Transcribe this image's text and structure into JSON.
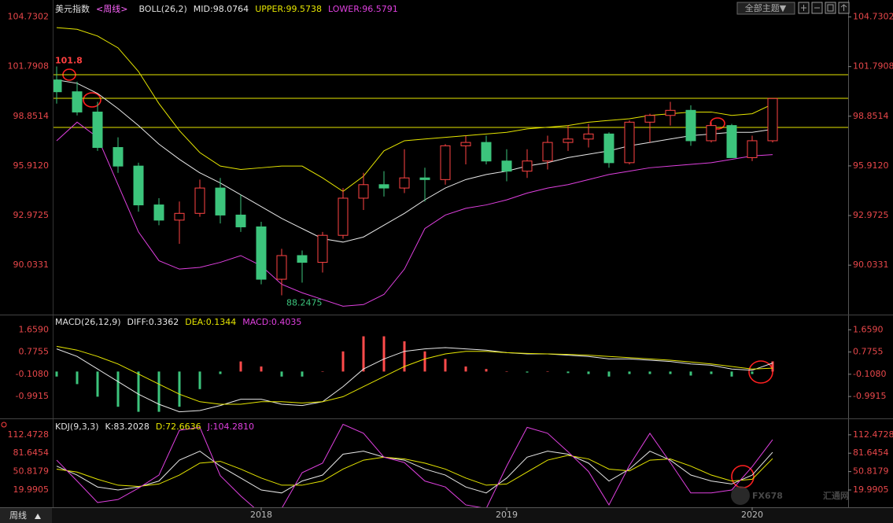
{
  "chart_data": [
    {
      "type": "candlestick",
      "title": "美元指数",
      "period": "<周线>",
      "indicator": "BOLL(26,2)",
      "categories": [
        null,
        null,
        null,
        null,
        null,
        null,
        null,
        null,
        null,
        null,
        "2018",
        null,
        null,
        null,
        null,
        null,
        null,
        null,
        null,
        null,
        null,
        null,
        "2019",
        null,
        null,
        null,
        null,
        null,
        null,
        null,
        null,
        null,
        null,
        null,
        "2020",
        null
      ],
      "open": [
        101.0,
        100.3,
        99.1,
        97.0,
        95.9,
        93.6,
        92.7,
        93.1,
        94.6,
        93.0,
        92.3,
        89.2,
        90.6,
        90.2,
        91.8,
        94.0,
        94.8,
        94.6,
        95.2,
        95.1,
        97.1,
        97.3,
        96.2,
        95.6,
        96.2,
        97.3,
        97.5,
        97.8,
        96.1,
        98.5,
        98.9,
        99.2,
        97.4,
        98.3,
        96.4,
        97.4
      ],
      "high": [
        101.8,
        100.9,
        99.7,
        97.6,
        96.1,
        94.0,
        93.8,
        95.1,
        95.2,
        94.2,
        92.6,
        91.0,
        90.9,
        92.0,
        94.6,
        95.5,
        95.6,
        96.9,
        95.8,
        97.2,
        97.7,
        97.7,
        96.9,
        96.9,
        97.7,
        98.3,
        98.4,
        97.9,
        98.6,
        99.0,
        99.7,
        99.5,
        98.5,
        98.4,
        97.7,
        99.9116
      ],
      "low": [
        99.6,
        98.9,
        96.8,
        95.5,
        93.2,
        92.4,
        91.3,
        92.9,
        92.5,
        92.0,
        88.9,
        88.2475,
        89.0,
        89.6,
        91.6,
        93.3,
        94.1,
        94.3,
        93.8,
        94.8,
        96.0,
        96.0,
        95.0,
        95.2,
        95.7,
        96.8,
        97.0,
        95.8,
        96.0,
        97.3,
        98.3,
        97.1,
        97.3,
        96.4,
        96.2,
        97.3
      ],
      "close": [
        100.3,
        99.1,
        97.0,
        95.9,
        93.6,
        92.7,
        93.1,
        94.6,
        93.0,
        92.3,
        89.2,
        90.6,
        90.2,
        91.8,
        94.0,
        94.8,
        94.6,
        95.2,
        95.1,
        97.1,
        97.3,
        96.2,
        95.6,
        96.2,
        97.3,
        97.5,
        97.8,
        96.1,
        98.5,
        98.9,
        99.2,
        97.4,
        98.3,
        96.4,
        97.4,
        99.9
      ],
      "up_color": "#ff4444",
      "down_color": "#3cc47c",
      "series": [
        {
          "name": "MID:98.0764",
          "color": "#e8e8e8",
          "values": [
            101.0,
            100.8,
            100.2,
            99.3,
            98.3,
            97.2,
            96.3,
            95.5,
            94.9,
            94.2,
            93.5,
            92.8,
            92.2,
            91.6,
            91.4,
            91.7,
            92.4,
            93.1,
            93.9,
            94.6,
            95.1,
            95.4,
            95.6,
            95.9,
            96.1,
            96.4,
            96.6,
            96.8,
            97.1,
            97.3,
            97.5,
            97.7,
            97.8,
            97.9,
            97.9,
            98.0764
          ]
        },
        {
          "name": "UPPER:99.5738",
          "color": "#e6e600",
          "values": [
            104.1,
            104.0,
            103.6,
            102.9,
            101.5,
            99.6,
            98.0,
            96.7,
            95.9,
            95.7,
            95.8,
            95.9,
            95.9,
            95.2,
            94.4,
            95.3,
            96.8,
            97.4,
            97.5,
            97.6,
            97.7,
            97.8,
            97.9,
            98.1,
            98.2,
            98.3,
            98.5,
            98.6,
            98.7,
            98.9,
            99.0,
            99.1,
            99.1,
            98.9,
            99.0,
            99.5738
          ]
        },
        {
          "name": "LOWER:96.5791",
          "color": "#e040e0",
          "values": [
            97.4,
            98.5,
            97.6,
            94.8,
            92.0,
            90.3,
            89.8,
            89.9,
            90.2,
            90.6,
            90.0,
            88.9,
            88.4,
            88.0,
            87.6,
            87.7,
            88.3,
            89.8,
            92.2,
            93.0,
            93.4,
            93.6,
            93.9,
            94.3,
            94.6,
            94.8,
            95.1,
            95.4,
            95.6,
            95.8,
            95.9,
            96.0,
            96.1,
            96.3,
            96.5,
            96.5791
          ]
        }
      ],
      "levels": [
        101.31,
        99.9116,
        98.19
      ],
      "level_color": "#e6e600",
      "ylim": [
        87.2,
        105.5
      ],
      "yticks": [
        104.7302,
        101.7908,
        98.8514,
        {
          "value": 95.912,
          "label": "95.9120"
        },
        92.9725,
        90.0331
      ]
    },
    {
      "type": "macd",
      "indicator": "MACD(26,12,9)",
      "series": [
        {
          "name": "DIFF:0.3362",
          "color": "#e8e8e8",
          "values": [
            0.9,
            0.6,
            0.1,
            -0.4,
            -0.9,
            -1.3,
            -1.6,
            -1.55,
            -1.35,
            -1.1,
            -1.1,
            -1.3,
            -1.35,
            -1.2,
            -0.6,
            0.1,
            0.5,
            0.8,
            0.9,
            0.95,
            0.9,
            0.85,
            0.75,
            0.7,
            0.7,
            0.65,
            0.6,
            0.5,
            0.5,
            0.45,
            0.4,
            0.3,
            0.25,
            0.1,
            0.05,
            0.3362
          ]
        },
        {
          "name": "DEA:0.1344",
          "color": "#e6e600",
          "values": [
            1.0,
            0.85,
            0.6,
            0.3,
            -0.1,
            -0.5,
            -0.9,
            -1.2,
            -1.3,
            -1.3,
            -1.2,
            -1.2,
            -1.25,
            -1.2,
            -1.0,
            -0.6,
            -0.2,
            0.2,
            0.5,
            0.7,
            0.8,
            0.8,
            0.75,
            0.72,
            0.7,
            0.68,
            0.65,
            0.6,
            0.55,
            0.5,
            0.45,
            0.38,
            0.3,
            0.2,
            0.1,
            0.1344
          ]
        }
      ],
      "histogram": {
        "name": "MACD:0.4035",
        "color": "#e040e0",
        "up_color": "#ff4b4b",
        "down_color": "#3cc47c",
        "values": [
          -0.2,
          -0.5,
          -1.0,
          -1.4,
          -1.6,
          -1.6,
          -1.4,
          -0.7,
          -0.1,
          0.4,
          0.2,
          -0.2,
          -0.2,
          0,
          0.8,
          1.4,
          1.4,
          1.2,
          0.8,
          0.5,
          0.2,
          0.1,
          0,
          -0.04,
          0,
          -0.06,
          -0.1,
          -0.2,
          -0.1,
          -0.1,
          -0.1,
          -0.16,
          -0.1,
          -0.2,
          -0.1,
          0.4035
        ]
      },
      "ylim": [
        -1.8,
        2.2
      ],
      "yticks": [
        {
          "value": 1.659,
          "label": "1.6590"
        },
        0.7755,
        {
          "value": -0.108,
          "label": "-0.1080"
        },
        -0.9915
      ]
    },
    {
      "type": "line",
      "indicator": "KDJ(9,3,3)",
      "series": [
        {
          "name": "K:83.2028",
          "color": "#e8e8e8",
          "values": [
            60,
            45,
            25,
            20,
            25,
            35,
            70,
            85,
            60,
            40,
            20,
            15,
            35,
            45,
            80,
            85,
            75,
            70,
            55,
            45,
            25,
            15,
            40,
            75,
            85,
            80,
            65,
            35,
            55,
            85,
            70,
            45,
            35,
            30,
            45,
            83.2028
          ]
        },
        {
          "name": "D:72.6636",
          "color": "#e6e600",
          "values": [
            55,
            50,
            38,
            28,
            26,
            30,
            45,
            65,
            68,
            55,
            40,
            28,
            28,
            35,
            55,
            70,
            75,
            72,
            65,
            55,
            40,
            28,
            30,
            50,
            70,
            78,
            72,
            55,
            52,
            70,
            72,
            60,
            45,
            35,
            38,
            72.6636
          ]
        },
        {
          "name": "J:104.2810",
          "color": "#e040e0",
          "values": [
            70,
            35,
            -1,
            4,
            23,
            45,
            120,
            125,
            44,
            10,
            -20,
            -11,
            49,
            65,
            130,
            115,
            75,
            66,
            35,
            25,
            -5,
            -11,
            60,
            125,
            115,
            84,
            51,
            -5,
            61,
            115,
            66,
            15,
            15,
            20,
            59,
            104.281
          ]
        }
      ],
      "ylim": [
        -9,
        136
      ],
      "yticks": [
        112.4728,
        81.6454,
        50.8179,
        19.9905
      ]
    }
  ],
  "ui": {
    "theme_button": "全部主题▼",
    "period_tab": "周线",
    "watermark_brand": "FX678",
    "watermark_name": "汇通网"
  }
}
